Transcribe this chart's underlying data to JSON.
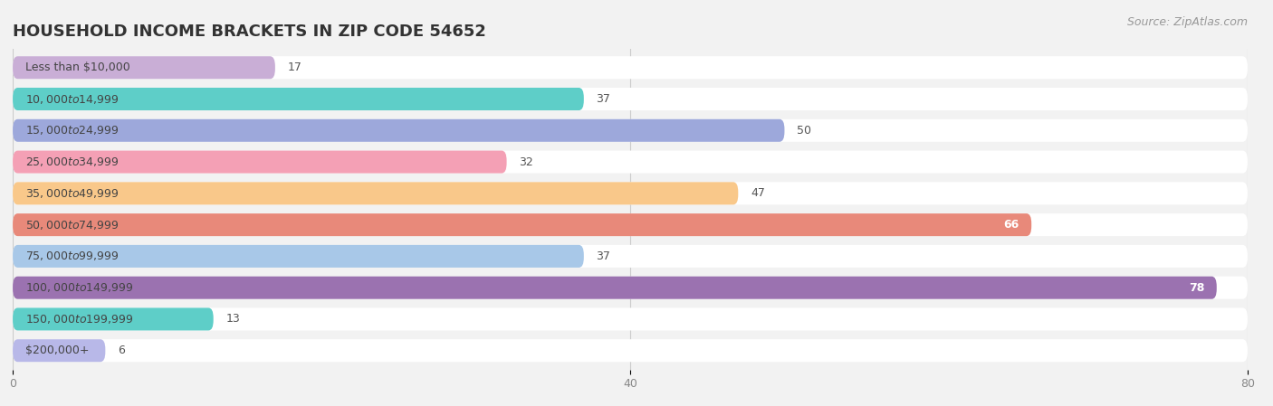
{
  "title": "HOUSEHOLD INCOME BRACKETS IN ZIP CODE 54652",
  "source": "Source: ZipAtlas.com",
  "categories": [
    "Less than $10,000",
    "$10,000 to $14,999",
    "$15,000 to $24,999",
    "$25,000 to $34,999",
    "$35,000 to $49,999",
    "$50,000 to $74,999",
    "$75,000 to $99,999",
    "$100,000 to $149,999",
    "$150,000 to $199,999",
    "$200,000+"
  ],
  "values": [
    17,
    37,
    50,
    32,
    47,
    66,
    37,
    78,
    13,
    6
  ],
  "bar_colors": [
    "#c9aed6",
    "#5ecec8",
    "#9da8db",
    "#f4a0b5",
    "#f9c88a",
    "#e8897a",
    "#a8c8e8",
    "#9b72b0",
    "#5ecec8",
    "#b8b8e8"
  ],
  "background_color": "#f2f2f2",
  "row_bg_color": "#ffffff",
  "xlim_max": 80,
  "xticks": [
    0,
    40,
    80
  ],
  "title_fontsize": 13,
  "label_fontsize": 9,
  "value_fontsize": 9,
  "source_fontsize": 9,
  "value_threshold_inside": 60
}
